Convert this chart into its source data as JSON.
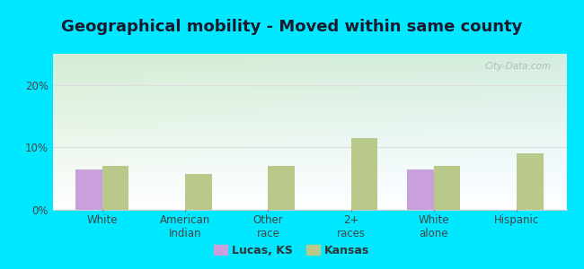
{
  "title": "Geographical mobility - Moved within same county",
  "categories": [
    "White",
    "American\nIndian",
    "Other\nrace",
    "2+\nraces",
    "White\nalone",
    "Hispanic"
  ],
  "lucas_ks": [
    6.5,
    0,
    0,
    0,
    6.5,
    0
  ],
  "kansas": [
    7.0,
    5.8,
    7.0,
    11.5,
    7.0,
    9.0
  ],
  "lucas_color": "#c9a0dc",
  "kansas_color": "#b8c98a",
  "bar_width": 0.32,
  "ylim": [
    0,
    25
  ],
  "yticks": [
    0,
    10,
    20
  ],
  "ytick_labels": [
    "0%",
    "10%",
    "20%"
  ],
  "background_outer": "#00e8ff",
  "plot_bg_top_left": "#d6edc8",
  "plot_bg_bottom_right": "#e8f8f0",
  "grid_color": "#dddddd",
  "title_fontsize": 13,
  "tick_fontsize": 8.5,
  "legend_labels": [
    "Lucas, KS",
    "Kansas"
  ],
  "watermark": "City-Data.com",
  "separator_color": "#aaaaaa"
}
